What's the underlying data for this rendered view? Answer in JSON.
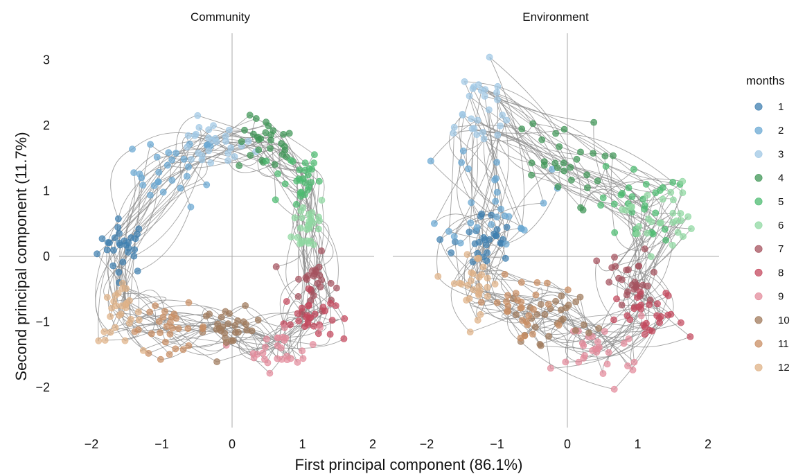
{
  "chart_data": {
    "type": "scatter",
    "xlabel": "First principal component (86.1%)",
    "ylabel": "Second principal component (11.7%)",
    "xlim": [
      -2.3,
      2.2
    ],
    "ylim": [
      -2.6,
      3.3
    ],
    "xticks": [
      "−2",
      "−1",
      "0",
      "1",
      "2"
    ],
    "yticks": [
      "3",
      "2",
      "1",
      "0",
      "−1",
      "−2"
    ],
    "x_tick_values": [
      -2,
      -1,
      0,
      1,
      2
    ],
    "y_tick_values": [
      3,
      2,
      1,
      0,
      -1,
      -2
    ],
    "legend": {
      "title": "months",
      "placement": "right",
      "entries": [
        {
          "label": "1",
          "color": "#3f7fb0"
        },
        {
          "label": "2",
          "color": "#6aa8d3"
        },
        {
          "label": "3",
          "color": "#9fc7e4"
        },
        {
          "label": "4",
          "color": "#3f9656"
        },
        {
          "label": "5",
          "color": "#4cbb70"
        },
        {
          "label": "6",
          "color": "#8fd8a1"
        },
        {
          "label": "7",
          "color": "#a5525e"
        },
        {
          "label": "8",
          "color": "#c4485d"
        },
        {
          "label": "9",
          "color": "#e38b9b"
        },
        {
          "label": "10",
          "color": "#a07a5b"
        },
        {
          "label": "11",
          "color": "#c98e63"
        },
        {
          "label": "12",
          "color": "#dfb186"
        }
      ]
    },
    "panels": [
      {
        "title": "Community",
        "month_centers": [
          [
            -1.55,
            0.15
          ],
          [
            -0.8,
            1.3
          ],
          [
            -0.3,
            1.7
          ],
          [
            0.5,
            1.7
          ],
          [
            0.9,
            1.2
          ],
          [
            1.1,
            0.5
          ],
          [
            1.15,
            -0.4
          ],
          [
            1.1,
            -0.9
          ],
          [
            0.7,
            -1.4
          ],
          [
            0.0,
            -1.1
          ],
          [
            -0.9,
            -1.1
          ],
          [
            -1.6,
            -0.9
          ]
        ],
        "month_spreads": [
          [
            0.3,
            0.35
          ],
          [
            0.5,
            0.45
          ],
          [
            0.5,
            0.3
          ],
          [
            0.35,
            0.35
          ],
          [
            0.3,
            0.4
          ],
          [
            0.2,
            0.4
          ],
          [
            0.25,
            0.35
          ],
          [
            0.3,
            0.3
          ],
          [
            0.45,
            0.3
          ],
          [
            0.35,
            0.25
          ],
          [
            0.5,
            0.3
          ],
          [
            0.25,
            0.35
          ]
        ],
        "points_per_month": 28
      },
      {
        "title": "Environment",
        "month_centers": [
          [
            -1.2,
            0.2
          ],
          [
            -1.0,
            1.0
          ],
          [
            -1.3,
            2.2
          ],
          [
            -0.2,
            1.4
          ],
          [
            1.0,
            0.8
          ],
          [
            1.3,
            0.6
          ],
          [
            0.9,
            -0.4
          ],
          [
            1.2,
            -1.0
          ],
          [
            0.5,
            -1.4
          ],
          [
            -0.2,
            -0.9
          ],
          [
            -0.7,
            -0.8
          ],
          [
            -1.3,
            -0.4
          ]
        ],
        "month_spreads": [
          [
            0.35,
            0.4
          ],
          [
            0.6,
            0.7
          ],
          [
            0.5,
            0.6
          ],
          [
            0.6,
            0.6
          ],
          [
            0.45,
            0.5
          ],
          [
            0.4,
            0.45
          ],
          [
            0.4,
            0.4
          ],
          [
            0.4,
            0.4
          ],
          [
            0.55,
            0.4
          ],
          [
            0.5,
            0.35
          ],
          [
            0.45,
            0.4
          ],
          [
            0.3,
            0.4
          ]
        ],
        "points_per_month": 28
      }
    ]
  }
}
